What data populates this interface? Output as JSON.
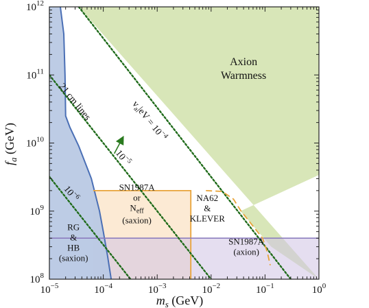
{
  "chart_data": {
    "type": "area",
    "xlabel": "m_s (GeV)",
    "ylabel": "f_a (GeV)",
    "x_scale": "log",
    "y_scale": "log",
    "xlim": [
      1e-05,
      1
    ],
    "ylim": [
      100000000.0,
      1000000000000.0
    ],
    "x_ticks": [
      {
        "value": 1e-05,
        "base": "10",
        "exp": "−5"
      },
      {
        "value": 0.0001,
        "base": "10",
        "exp": "−4"
      },
      {
        "value": 0.001,
        "base": "10",
        "exp": "−3"
      },
      {
        "value": 0.01,
        "base": "10",
        "exp": "−2"
      },
      {
        "value": 0.1,
        "base": "10",
        "exp": "−1"
      },
      {
        "value": 1,
        "base": "10",
        "exp": "0"
      }
    ],
    "y_ticks": [
      {
        "value": 100000000.0,
        "base": "10",
        "exp": "8"
      },
      {
        "value": 1000000000.0,
        "base": "10",
        "exp": "9"
      },
      {
        "value": 10000000000.0,
        "base": "10",
        "exp": "10"
      },
      {
        "value": 100000000000.0,
        "base": "10",
        "exp": "11"
      },
      {
        "value": 1000000000000.0,
        "base": "10",
        "exp": "12"
      }
    ],
    "grid": false,
    "colors": {
      "warmness_fill": "#d8e6b8",
      "warmness_edge": "#2f6e1f",
      "rg_hb_fill": "#b9c9e4",
      "rg_hb_edge": "#4a6fb5",
      "sn_saxion_fill": "#fbe3c6",
      "sn_saxion_edge": "#e8a43a",
      "sn_axion_fill": "#cfc3e3",
      "sn_axion_edge": "#8c7dbe",
      "dotted_line": "#1f6b1a",
      "arrow": "#2a7a1f"
    },
    "regions": [
      {
        "id": "axion-warmness",
        "label_lines": [
          "Axion",
          "Warmness"
        ],
        "label_pos": [
          0.04,
          110000000000.0
        ],
        "points": [
          [
            3.5e-05,
            1000000000000.0
          ],
          [
            1,
            1000000000000.0
          ],
          [
            1,
            3400000000.0
          ],
          [
            0.035,
            1000000000.0
          ],
          [
            0.13,
            300000000.0
          ],
          [
            1,
            100000000.0
          ]
        ]
      },
      {
        "id": "rg-hb",
        "label_lines": [
          "RG",
          "&",
          "HB",
          "(saxion)"
        ],
        "label_pos": [
          2.8e-05,
          310000000.0
        ],
        "points": [
          [
            1e-05,
            1000000000000.0
          ],
          [
            1.6e-05,
            1000000000000.0
          ],
          [
            1.85e-05,
            400000000000.0
          ],
          [
            1.95e-05,
            100000000000.0
          ],
          [
            2e-05,
            25000000000.0
          ],
          [
            2.4e-05,
            17000000000.0
          ],
          [
            3.5e-05,
            9000000000.0
          ],
          [
            6e-05,
            3000000000.0
          ],
          [
            8.5e-05,
            1000000000.0
          ],
          [
            0.0001,
            500000000.0
          ],
          [
            0.00012,
            220000000.0
          ],
          [
            0.00014,
            100000000.0
          ],
          [
            1e-05,
            100000000.0
          ]
        ]
      },
      {
        "id": "sn1987a-saxion",
        "label_lines": [
          "SN1987A",
          "or",
          "N",
          "(saxion)"
        ],
        "label_sub": "eff",
        "label_pos": [
          0.00042,
          1200000000.0
        ],
        "points": [
          [
            6.5e-05,
            2000000000.0
          ],
          [
            0.0042,
            2000000000.0
          ],
          [
            0.0042,
            100000000.0
          ],
          [
            6.5e-05,
            100000000.0
          ]
        ]
      },
      {
        "id": "sn1987a-axion",
        "label_lines": [
          "SN1987A",
          "(axion)"
        ],
        "label_pos": [
          0.045,
          270000000.0
        ],
        "points": [
          [
            1e-05,
            400000000.0
          ],
          [
            1,
            400000000.0
          ],
          [
            1,
            100000000.0
          ],
          [
            1e-05,
            100000000.0
          ]
        ]
      },
      {
        "id": "na62-klever",
        "label_lines": [
          "NA62",
          "&",
          "KLEVER"
        ],
        "label_pos": [
          0.0085,
          1000000000.0
        ],
        "points": [
          [
            0.0042,
            2000000000.0
          ],
          [
            0.008,
            2000000000.0
          ],
          [
            0.016,
            1950000000.0
          ],
          [
            0.026,
            1500000000.0
          ],
          [
            0.036,
            1000000000.0
          ],
          [
            0.0042,
            1000000000.0
          ]
        ]
      }
    ],
    "series": [
      {
        "id": "v-1e-4",
        "style": "dotted",
        "points": [
          [
            3.5e-05,
            1000000000000.0
          ],
          [
            0.3,
            100000000.0
          ]
        ]
      },
      {
        "id": "v-1e-5",
        "style": "dotted",
        "points": [
          [
            1e-05,
            100000000000.0
          ],
          [
            0.01,
            100000000.0
          ]
        ]
      },
      {
        "id": "v-1e-6",
        "style": "dotted",
        "points": [
          [
            1e-05,
            3200000000.0
          ],
          [
            0.00032,
            100000000.0
          ]
        ]
      },
      {
        "id": "sn-saxion-dashed",
        "style": "dashed",
        "points": [
          [
            0.008,
            2000000000.0
          ],
          [
            0.016,
            1950000000.0
          ],
          [
            0.026,
            1500000000.0
          ],
          [
            0.036,
            1000000000.0
          ],
          [
            0.06,
            600000000.0
          ],
          [
            0.09,
            400000000.0
          ],
          [
            0.11,
            250000000.0
          ],
          [
            0.125,
            160000000.0
          ]
        ]
      }
    ],
    "annotations": [
      {
        "id": "v-1e-4-label",
        "text": "v",
        "sub": "a",
        "mid": "|eV",
        "after": " = 10",
        "sup": "−4",
        "pos": [
          0.00065,
          20000000000.0
        ],
        "angle": 51
      },
      {
        "id": "v-1e-5-label",
        "text": "10",
        "sup": "−5",
        "pos": [
          0.00021,
          5700000000.0
        ],
        "angle": 51
      },
      {
        "id": "v-1e-6-label",
        "text": "10",
        "sup": "−6",
        "pos": [
          2.3e-05,
          1700000000.0
        ],
        "angle": 51
      },
      {
        "id": "21cm-label",
        "text": "21 cm lines",
        "pos": [
          2.7e-05,
          38000000000.0
        ],
        "angle": 51
      }
    ],
    "arrow": {
      "from": [
        0.00016,
        7000000000.0
      ],
      "to": [
        0.00023,
        12000000000.0
      ]
    }
  }
}
